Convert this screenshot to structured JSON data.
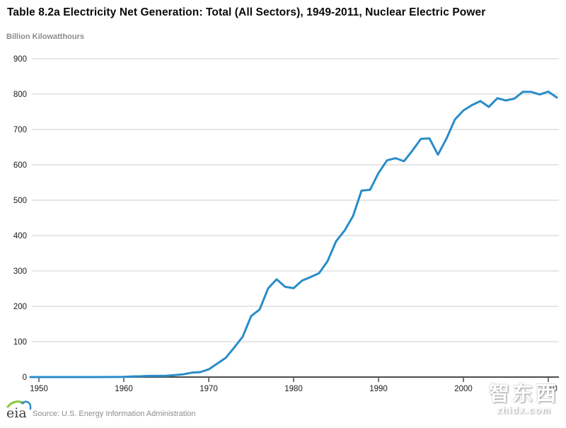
{
  "header": {
    "title": "Table 8.2a Electricity Net Generation: Total (All Sectors), 1949-2011, Nuclear Electric Power"
  },
  "chart_data": {
    "type": "line",
    "title": "Table 8.2a Electricity Net Generation: Total (All Sectors), 1949-2011, Nuclear Electric Power",
    "xlabel": "",
    "ylabel": "Billion Kilowatthours",
    "ylim": [
      0,
      900
    ],
    "ytick_step": 100,
    "xticks": [
      1950,
      1960,
      1970,
      1980,
      1990,
      2000,
      2010
    ],
    "grid": true,
    "legend": false,
    "years": [
      1949,
      1950,
      1951,
      1952,
      1953,
      1954,
      1955,
      1956,
      1957,
      1958,
      1959,
      1960,
      1961,
      1962,
      1963,
      1964,
      1965,
      1966,
      1967,
      1968,
      1969,
      1970,
      1971,
      1972,
      1973,
      1974,
      1975,
      1976,
      1977,
      1978,
      1979,
      1980,
      1981,
      1982,
      1983,
      1984,
      1985,
      1986,
      1987,
      1988,
      1989,
      1990,
      1991,
      1992,
      1993,
      1994,
      1995,
      1996,
      1997,
      1998,
      1999,
      2000,
      2001,
      2002,
      2003,
      2004,
      2005,
      2006,
      2007,
      2008,
      2009,
      2010,
      2011
    ],
    "series": [
      {
        "name": "Nuclear Electric Power",
        "color": "#2a8cc9",
        "values": [
          0,
          0,
          0,
          0,
          0,
          0,
          0,
          0,
          0.1,
          0.2,
          0.2,
          0.5,
          1.7,
          2.3,
          3.2,
          3.3,
          3.7,
          5.5,
          7.7,
          12.5,
          13.9,
          21.8,
          38.1,
          54.1,
          83.5,
          114.0,
          172.5,
          191.1,
          250.9,
          276.4,
          255.2,
          251.1,
          272.7,
          282.8,
          293.7,
          327.6,
          383.7,
          414.0,
          455.3,
          527.0,
          529.4,
          576.9,
          612.6,
          618.8,
          610.3,
          640.4,
          673.4,
          674.7,
          628.6,
          673.7,
          728.3,
          753.9,
          768.8,
          780.1,
          763.7,
          788.5,
          782.0,
          787.2,
          806.4,
          806.2,
          798.9,
          807.0,
          790.2
        ]
      }
    ]
  },
  "footer": {
    "logo_text": "eia",
    "source": "Source: U.S. Energy Information Administration"
  },
  "watermark": {
    "cn": "智东西",
    "domain": "zhidx.com"
  },
  "colors": {
    "line": "#2a8cc9",
    "grid": "#cccccc",
    "axis": "#4d4d4d",
    "tick_label": "#1a1a1a",
    "title": "#0a0a0a",
    "muted": "#8c8c8c",
    "logo_green": "#8cc63e",
    "logo_blue": "#2b8cca",
    "watermark": "#ffffff"
  }
}
